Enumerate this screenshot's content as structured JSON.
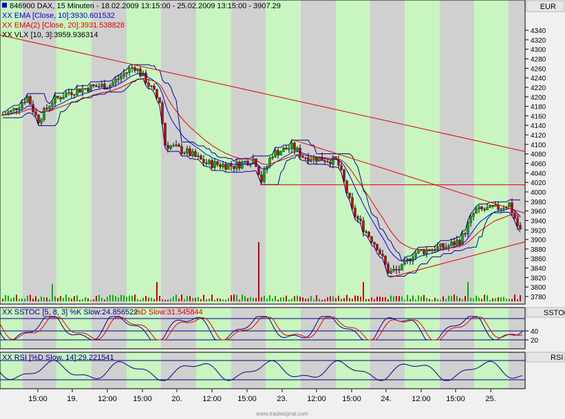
{
  "header": {
    "main_title": "846900  DAX, 15 Minuten - 18.02.2009 13:15:00 - 25.02.2009 13:15:00 - 3907.29",
    "ema10_legend": "XX EMA [Close, 10]:3930.601532",
    "ema20_legend": "XX EMA(2) [Close, 20]:3931.538828",
    "vlx_legend": "XX VLX [10, 3]:3959.936314",
    "sstoc_legend_k": "XX SSTOC [5, 8, 3] %K Slow:24.856522",
    "sstoc_legend_d": "%D Slow:31.545844",
    "rsi_legend": "XX RSI [%D Slow, 14]:29.221541"
  },
  "right_axis": {
    "unit": "EUR",
    "sstoc_label": "SSTOC",
    "rsi_label": "RSI"
  },
  "footer": {
    "watermark": "www.tradesignal.com"
  },
  "colors": {
    "bull": "#00b000",
    "bear": "#c00000",
    "ema10": "#0000e0",
    "ema20": "#e00000",
    "band": "#000080",
    "trend": "#e00000",
    "day": "#c8f5c0",
    "night": "#d0d0d0"
  },
  "chart_data": [
    {
      "type": "candlestick",
      "title": "846900  DAX, 15 Minuten - 18.02.2009 13:15:00 - 25.02.2009 13:15:00 - 3907.29",
      "unit": "EUR",
      "ylim": [
        3770,
        4355
      ],
      "yticks": [
        3780,
        3800,
        3820,
        3840,
        3860,
        3880,
        3900,
        3920,
        3940,
        3960,
        3980,
        4000,
        4020,
        4040,
        4060,
        4080,
        4100,
        4120,
        4140,
        4160,
        4180,
        4200,
        4220,
        4240,
        4260,
        4280,
        4300,
        4320,
        4340
      ],
      "xticks": [
        "15:00",
        "19.",
        "12:00",
        "15:00",
        "20.",
        "12:00",
        "15:00",
        "23.",
        "12:00",
        "15:00",
        "24.",
        "12:00",
        "15:00",
        "25."
      ],
      "series": [
        {
          "name": "XX EMA [Close, 10]",
          "last": 3930.601532
        },
        {
          "name": "XX EMA(2) [Close, 20]",
          "last": 3931.538828
        },
        {
          "name": "XX VLX [10, 3]",
          "last": 3959.936314
        }
      ],
      "trendlines": [
        {
          "from": [
            "18.02 13:15",
            4330
          ],
          "to": [
            "25.02 13:15",
            4085
          ]
        },
        {
          "from": [
            "23.02 11:00",
            4110
          ],
          "to": [
            "25.02 13:15",
            3955
          ]
        },
        {
          "from": [
            "20.02 17:00",
            4015
          ],
          "to": [
            "25.02 13:15",
            4015
          ]
        },
        {
          "from": [
            "24.02 10:00",
            3820
          ],
          "to": [
            "25.02 13:15",
            3895
          ]
        }
      ]
    },
    {
      "type": "line",
      "title": "XX SSTOC [5, 8, 3]",
      "yticks": [
        40,
        20
      ],
      "series": [
        {
          "name": "%K Slow",
          "last": 24.856522
        },
        {
          "name": "%D Slow",
          "last": 31.545844
        }
      ]
    },
    {
      "type": "line",
      "title": "XX RSI [%D Slow, 14]",
      "series": [
        {
          "name": "RSI",
          "last": 29.221541
        }
      ]
    }
  ]
}
